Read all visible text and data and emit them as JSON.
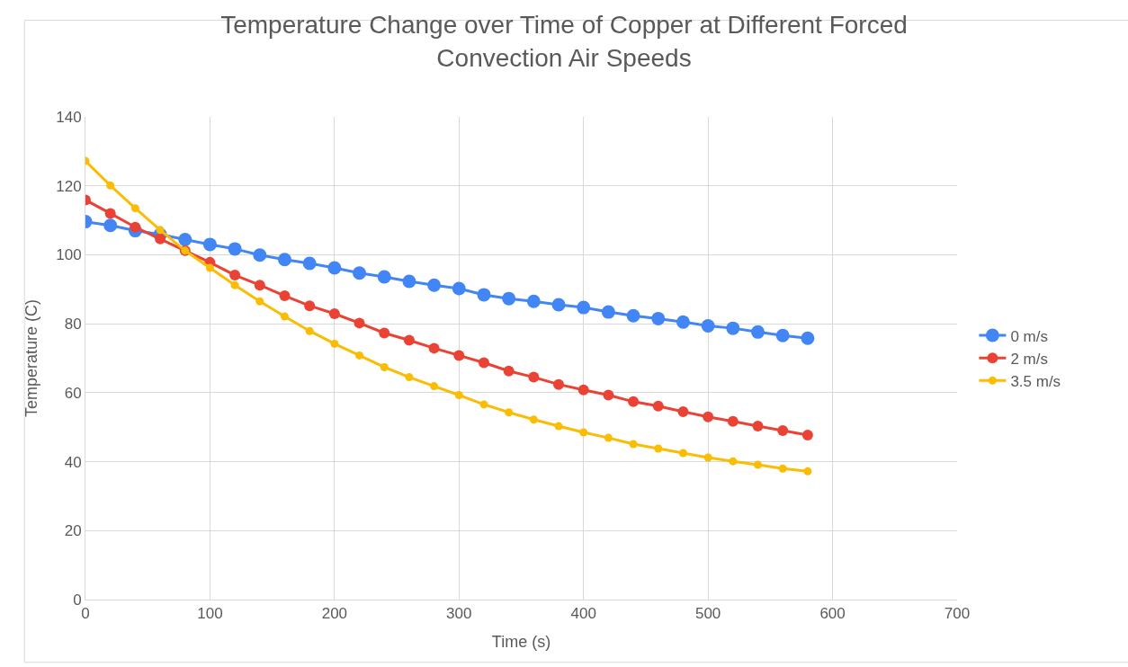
{
  "chart_data": {
    "type": "line",
    "title": "Temperature Change over Time of Copper at Different Forced Convection Air Speeds",
    "xlabel": "Time (s)",
    "ylabel": "Temperature (C)",
    "x": [
      0,
      20,
      40,
      60,
      80,
      100,
      120,
      140,
      160,
      180,
      200,
      220,
      240,
      260,
      280,
      300,
      320,
      340,
      360,
      380,
      400,
      420,
      440,
      460,
      480,
      500,
      520,
      540,
      560,
      580
    ],
    "series": [
      {
        "name": "0 m/s",
        "color": "#4285f4",
        "values": [
          109.6,
          108.5,
          107,
          105.9,
          104.4,
          103,
          101.7,
          99.9,
          98.6,
          97.5,
          96.2,
          94.7,
          93.6,
          92.3,
          91.2,
          90.2,
          88.4,
          87.3,
          86.5,
          85.5,
          84.7,
          83.4,
          82.3,
          81.5,
          80.5,
          79.4,
          78.7,
          77.6,
          76.6,
          75.8
        ]
      },
      {
        "name": "2 m/s",
        "color": "#ea4335",
        "values": [
          115.9,
          112,
          108,
          104.6,
          101.2,
          97.8,
          94.1,
          91.2,
          88.1,
          85.2,
          82.9,
          80.2,
          77.3,
          75.2,
          72.9,
          70.8,
          68.7,
          66.3,
          64.5,
          62.4,
          60.8,
          59.3,
          57.4,
          56.1,
          54.5,
          53,
          51.7,
          50.3,
          49,
          47.7
        ]
      },
      {
        "name": "3.5 m/s",
        "color": "#fbbc04",
        "values": [
          127.2,
          120.1,
          113.5,
          107.2,
          101.2,
          96.2,
          91.2,
          86.5,
          82.1,
          77.9,
          74.2,
          70.8,
          67.4,
          64.5,
          61.9,
          59.3,
          56.6,
          54.3,
          52.2,
          50.3,
          48.5,
          46.9,
          45.1,
          43.8,
          42.5,
          41.2,
          40.1,
          39.1,
          38,
          37.2
        ]
      }
    ],
    "xlim": [
      0,
      700
    ],
    "xticks": [
      0,
      100,
      200,
      300,
      400,
      500,
      600,
      700
    ],
    "ylim": [
      0,
      140
    ],
    "yticks": [
      0,
      20,
      40,
      60,
      80,
      100,
      120,
      140
    ],
    "grid": true,
    "legend": "right",
    "marker": "circle",
    "line_style": "solid"
  }
}
